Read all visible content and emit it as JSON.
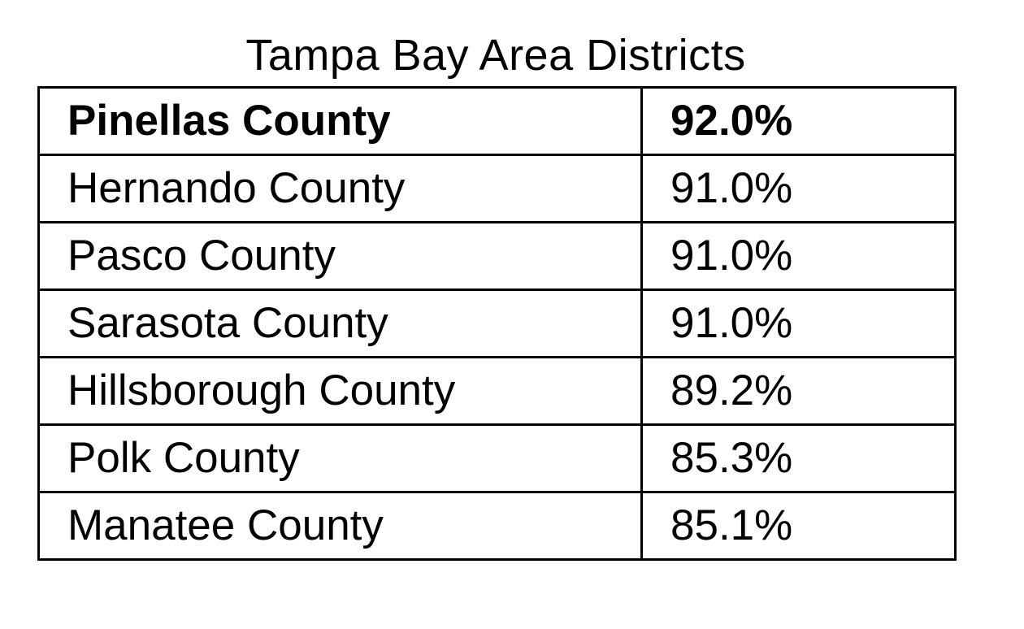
{
  "title": "Tampa Bay Area Districts",
  "rows": [
    {
      "county": "Pinellas County",
      "value": "92.0%"
    },
    {
      "county": "Hernando County",
      "value": "91.0%"
    },
    {
      "county": "Pasco County",
      "value": "91.0%"
    },
    {
      "county": "Sarasota County",
      "value": "91.0%"
    },
    {
      "county": "Hillsborough County",
      "value": "89.2%"
    },
    {
      "county": "Polk County",
      "value": "85.3%"
    },
    {
      "county": "Manatee County",
      "value": "85.1%"
    }
  ]
}
